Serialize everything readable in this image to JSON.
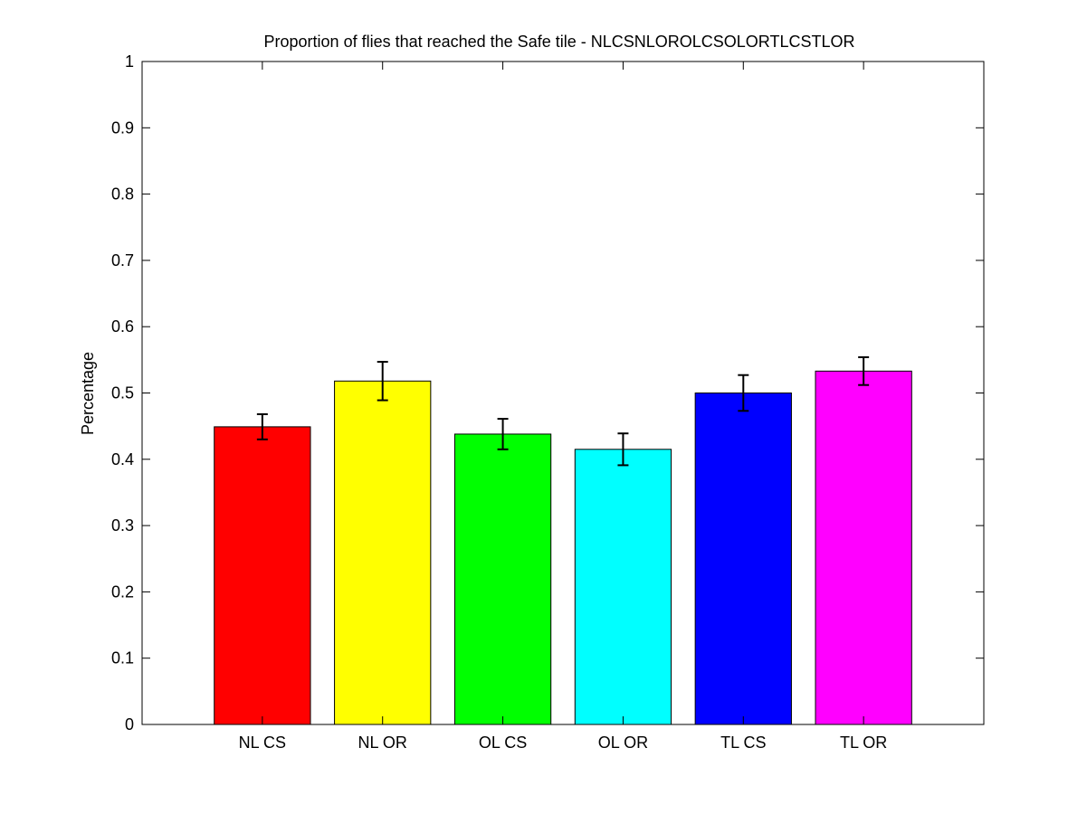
{
  "chart_data": {
    "type": "bar",
    "title": "Proportion of flies that reached the Safe tile - NLCSNLOROLCSOLORTLCSTLOR",
    "xlabel": "",
    "ylabel": "Percentage",
    "categories": [
      "NL CS",
      "NL OR",
      "OL CS",
      "OL OR",
      "TL CS",
      "TL OR"
    ],
    "values": [
      0.449,
      0.518,
      0.438,
      0.415,
      0.5,
      0.533
    ],
    "errors": [
      0.019,
      0.029,
      0.023,
      0.024,
      0.027,
      0.021
    ],
    "colors": [
      "#ff0000",
      "#ffff00",
      "#00ff00",
      "#00ffff",
      "#0000ff",
      "#ff00ff"
    ],
    "ylim": [
      0,
      1
    ],
    "yticks": [
      "0",
      "0.1",
      "0.2",
      "0.3",
      "0.4",
      "0.5",
      "0.6",
      "0.7",
      "0.8",
      "0.9",
      "1"
    ],
    "grid": false,
    "legend": false
  }
}
